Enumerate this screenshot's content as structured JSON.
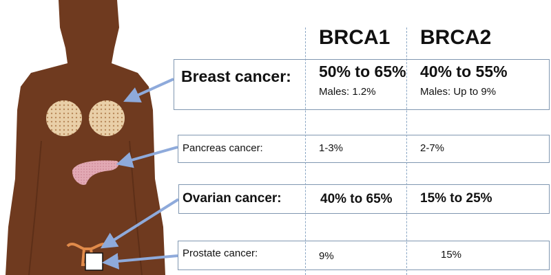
{
  "headers": {
    "col1": "BRCA1",
    "col2": "BRCA2"
  },
  "rows": [
    {
      "label": "Breast cancer:",
      "brca1": "50% to 65%",
      "brca1_note": "Males: 1.2%",
      "brca2": "40% to 55%",
      "brca2_note": "Males: Up to 9%"
    },
    {
      "label": "Pancreas cancer:",
      "brca1": "1-3%",
      "brca2": "2-7%"
    },
    {
      "label": "Ovarian cancer:",
      "brca1": "40% to 65%",
      "brca2": "15% to 25%"
    },
    {
      "label": "Prostate cancer:",
      "brca1": "9%",
      "brca2": "15%"
    }
  ],
  "colors": {
    "body": "#6f3a1f",
    "arrow": "#8eaadb",
    "border": "#7f96b0"
  }
}
